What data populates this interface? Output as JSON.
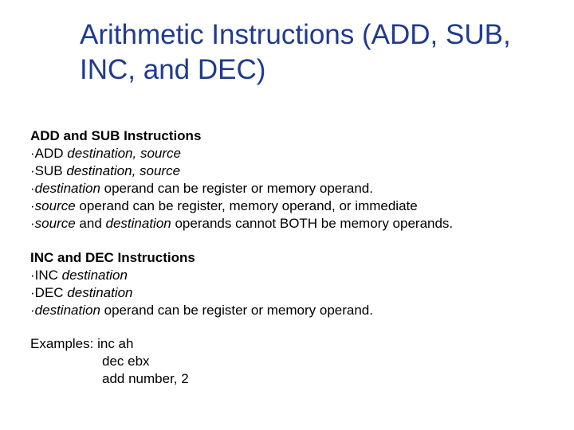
{
  "title_color": "#1f3b8e",
  "text_color": "#000000",
  "background_color": "#ffffff",
  "title_fontsize": 35,
  "body_fontsize": 17,
  "title": "Arithmetic Instructions (ADD, SUB, INC, and DEC)",
  "sec1": {
    "head": "ADD and SUB Instructions",
    "l1a": "·ADD ",
    "l1b": "destination, source",
    "l2a": "·SUB ",
    "l2b": "destination, source",
    "l3a": "·",
    "l3b": "destination",
    "l3c": " operand can be register or memory operand.",
    "l4a": "·",
    "l4b": "source",
    "l4c": " operand can be register, memory operand, or immediate",
    "l5a": "·",
    "l5b": "source",
    "l5c": " and ",
    "l5d": "destination",
    "l5e": " operands cannot BOTH be memory operands."
  },
  "sec2": {
    "head": "INC and DEC Instructions",
    "l1a": "·INC ",
    "l1b": "destination",
    "l2a": "·DEC ",
    "l2b": "destination",
    "l3a": "·",
    "l3b": "destination",
    "l3c": " operand can be register or memory operand."
  },
  "ex": {
    "l1": "Examples: inc ah",
    "l2": "dec ebx",
    "l3": "add number, 2"
  }
}
